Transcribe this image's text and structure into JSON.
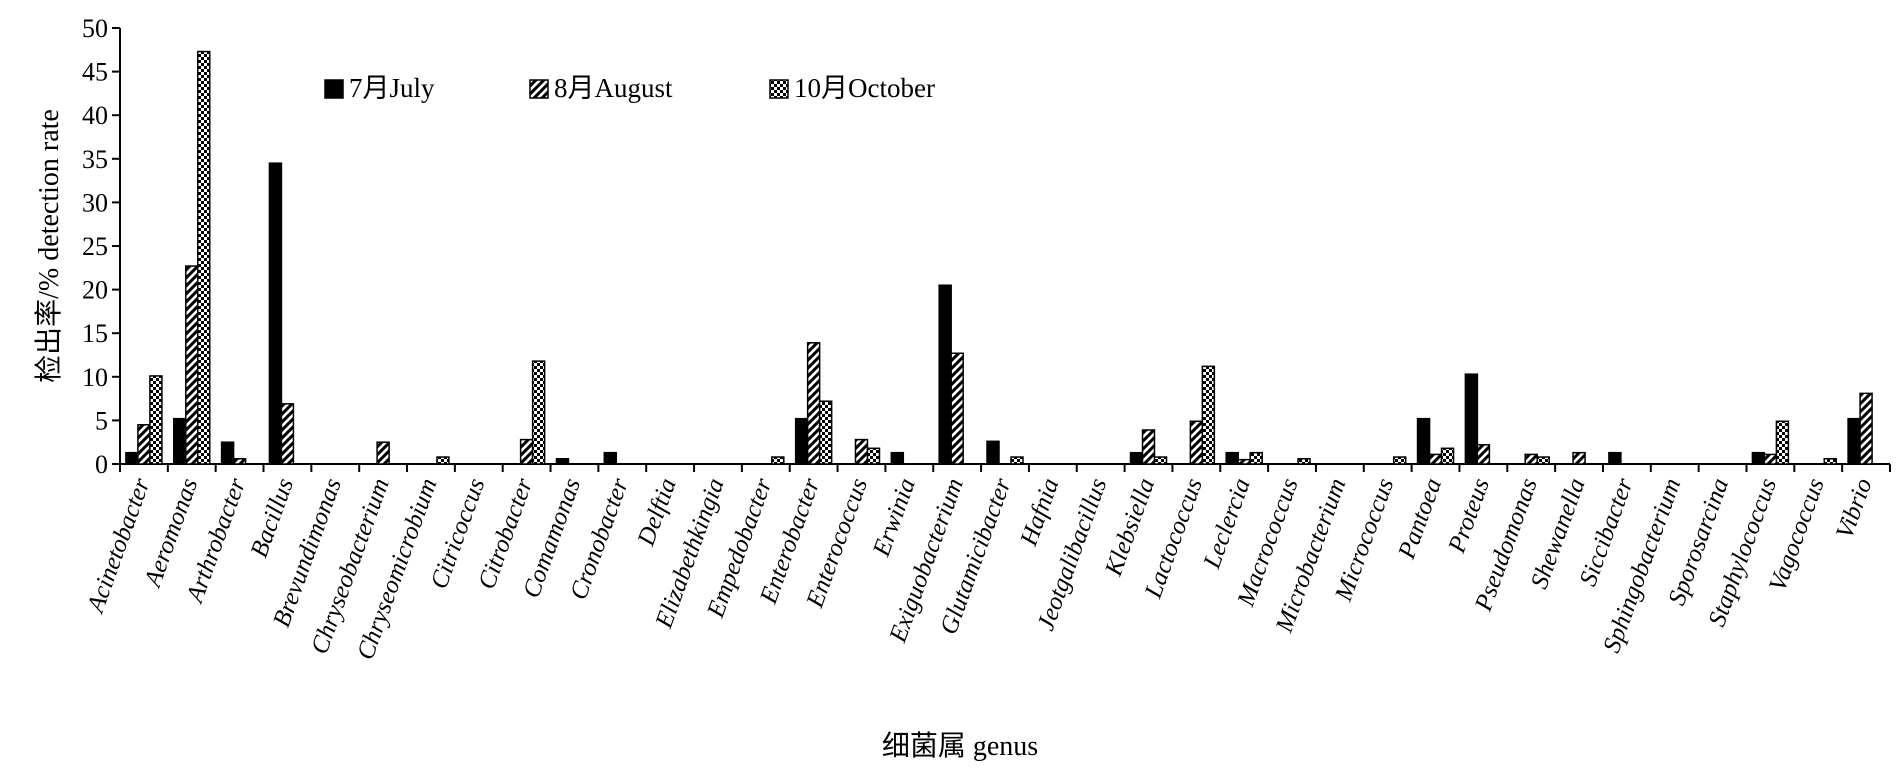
{
  "chart_data": {
    "type": "bar",
    "title": "",
    "xlabel": "细菌属 genus",
    "ylabel": "检出率/% detection rate",
    "ylim": [
      0,
      50
    ],
    "yticks": [
      0,
      5,
      10,
      15,
      20,
      25,
      30,
      35,
      40,
      45,
      50
    ],
    "grid": false,
    "legend_position": "top-left",
    "categories": [
      "Acinetobacter",
      "Aeromonas",
      "Arthrobacter",
      "Bacillus",
      "Brevundimonas",
      "Chryseobacterium",
      "Chryseomicrobium",
      "Citricoccus",
      "Citrobacter",
      "Comamonas",
      "Cronobacter",
      "Delftia",
      "Elizabethkingia",
      "Empedobacter",
      "Enterobacter",
      "Enterococcus",
      "Erwinia",
      "Exiguobacterium",
      "Glutamicibacter",
      "Hafnia",
      "Jeotgalibacillus",
      "Klebsiella",
      "Lactococcus",
      "Leclercia",
      "Macrococcus",
      "Microbacterium",
      "Micrococcus",
      "Pantoea",
      "Proteus",
      "Pseudomonas",
      "Shewanella",
      "Siccibacter",
      "Sphingobacterium",
      "Sporosarcina",
      "Staphylococcus",
      "Vagococcus",
      "Vibrio"
    ],
    "series": [
      {
        "name": "7月July",
        "pattern": "solid",
        "values": [
          1.3,
          5.2,
          2.5,
          34.5,
          0,
          0,
          0,
          0,
          0,
          0.6,
          1.3,
          0,
          0,
          0,
          5.2,
          0,
          1.3,
          20.5,
          2.6,
          0,
          0,
          1.3,
          0,
          1.3,
          0,
          0,
          0,
          5.2,
          10.3,
          0,
          0,
          1.3,
          0,
          0,
          1.3,
          0,
          5.2
        ]
      },
      {
        "name": "8月August",
        "pattern": "diagonal",
        "values": [
          4.5,
          22.7,
          0.6,
          6.9,
          0,
          2.5,
          0,
          0,
          2.8,
          0,
          0,
          0,
          0,
          0,
          13.9,
          2.8,
          0,
          12.7,
          0,
          0,
          0,
          3.9,
          4.9,
          0.5,
          0,
          0,
          0,
          1.1,
          2.2,
          1.1,
          1.3,
          0,
          0,
          0,
          1.1,
          0,
          8.1
        ]
      },
      {
        "name": "10月October",
        "pattern": "checker",
        "values": [
          10.1,
          47.3,
          0,
          0,
          0,
          0,
          0.8,
          0,
          11.8,
          0,
          0,
          0,
          0,
          0.8,
          7.2,
          1.8,
          0,
          0,
          0.8,
          0,
          0,
          0.8,
          11.2,
          1.3,
          0.6,
          0,
          0.8,
          1.8,
          0,
          0.8,
          0,
          0,
          0,
          0,
          4.9,
          0.6,
          0
        ]
      }
    ]
  }
}
